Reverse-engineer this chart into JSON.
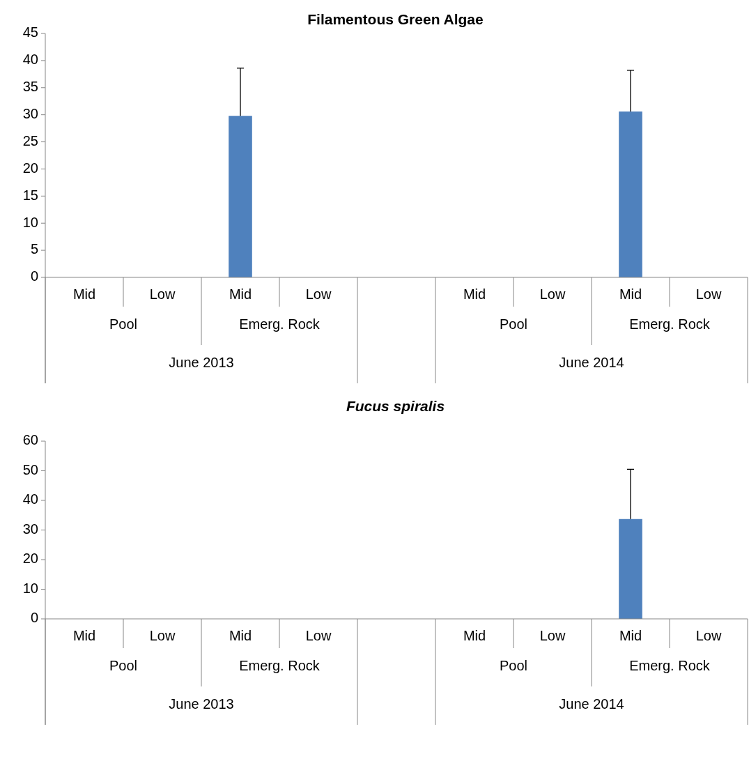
{
  "chart_data": [
    {
      "type": "bar",
      "title": "Filamentous Green Algae",
      "categories": [
        "Mid",
        "Low",
        "Mid",
        "Low",
        null,
        "Mid",
        "Low",
        "Mid",
        "Low"
      ],
      "values": [
        0,
        0,
        29.8,
        0,
        null,
        0,
        0,
        30.6,
        0
      ],
      "errors": [
        null,
        null,
        [
          29.8,
          38.6
        ],
        null,
        null,
        null,
        null,
        [
          30.6,
          38.2
        ],
        null
      ],
      "color": "#4f81bd",
      "ylim": [
        0,
        45
      ],
      "yticks": [
        0,
        5,
        10,
        15,
        20,
        25,
        30,
        35,
        40,
        45
      ],
      "grid": false,
      "annotations": [
        "Pool",
        "Emerg. Rock",
        "Pool",
        "Emerg. Rock",
        "June 2013",
        "June 2014"
      ]
    },
    {
      "type": "bar",
      "title": "Fucus spiralis",
      "categories": [
        "Mid",
        "Low",
        "Mid",
        "Low",
        null,
        "Mid",
        "Low",
        "Mid",
        "Low"
      ],
      "values": [
        0,
        0,
        0,
        0,
        null,
        0,
        0,
        33.7,
        0
      ],
      "errors": [
        null,
        null,
        null,
        null,
        null,
        null,
        null,
        [
          33.7,
          50.5
        ],
        null
      ],
      "color": "#4f81bd",
      "ylim": [
        0,
        60
      ],
      "yticks": [
        0,
        10,
        20,
        30,
        40,
        50,
        60
      ],
      "grid": false,
      "annotations": [
        "Pool",
        "Emerg. Rock",
        "Pool",
        "Emerg. Rock",
        "June 2013",
        "June 2014"
      ]
    }
  ]
}
